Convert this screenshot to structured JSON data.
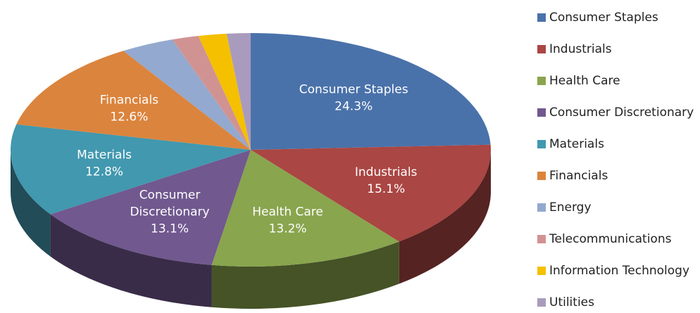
{
  "chart_data": {
    "type": "pie",
    "categories": [
      "Consumer Staples",
      "Industrials",
      "Health Care",
      "Consumer Discretionary",
      "Materials",
      "Financials",
      "Energy",
      "Telecommunications",
      "Information Technology",
      "Utilities"
    ],
    "values": [
      24.3,
      15.1,
      13.2,
      13.1,
      12.8,
      12.6,
      3.6,
      1.8,
      1.9,
      1.6
    ],
    "value_labels": [
      "24.3%",
      "15.1%",
      "13.2%",
      "13.1%",
      "12.8%",
      "12.6%",
      null,
      null,
      null,
      null
    ],
    "colors": [
      "#4a72aa",
      "#aa4643",
      "#89a54e",
      "#71588f",
      "#4198af",
      "#db843d",
      "#93a9cf",
      "#d19392",
      "#f5c000",
      "#a99bbd"
    ],
    "legend": "right"
  }
}
